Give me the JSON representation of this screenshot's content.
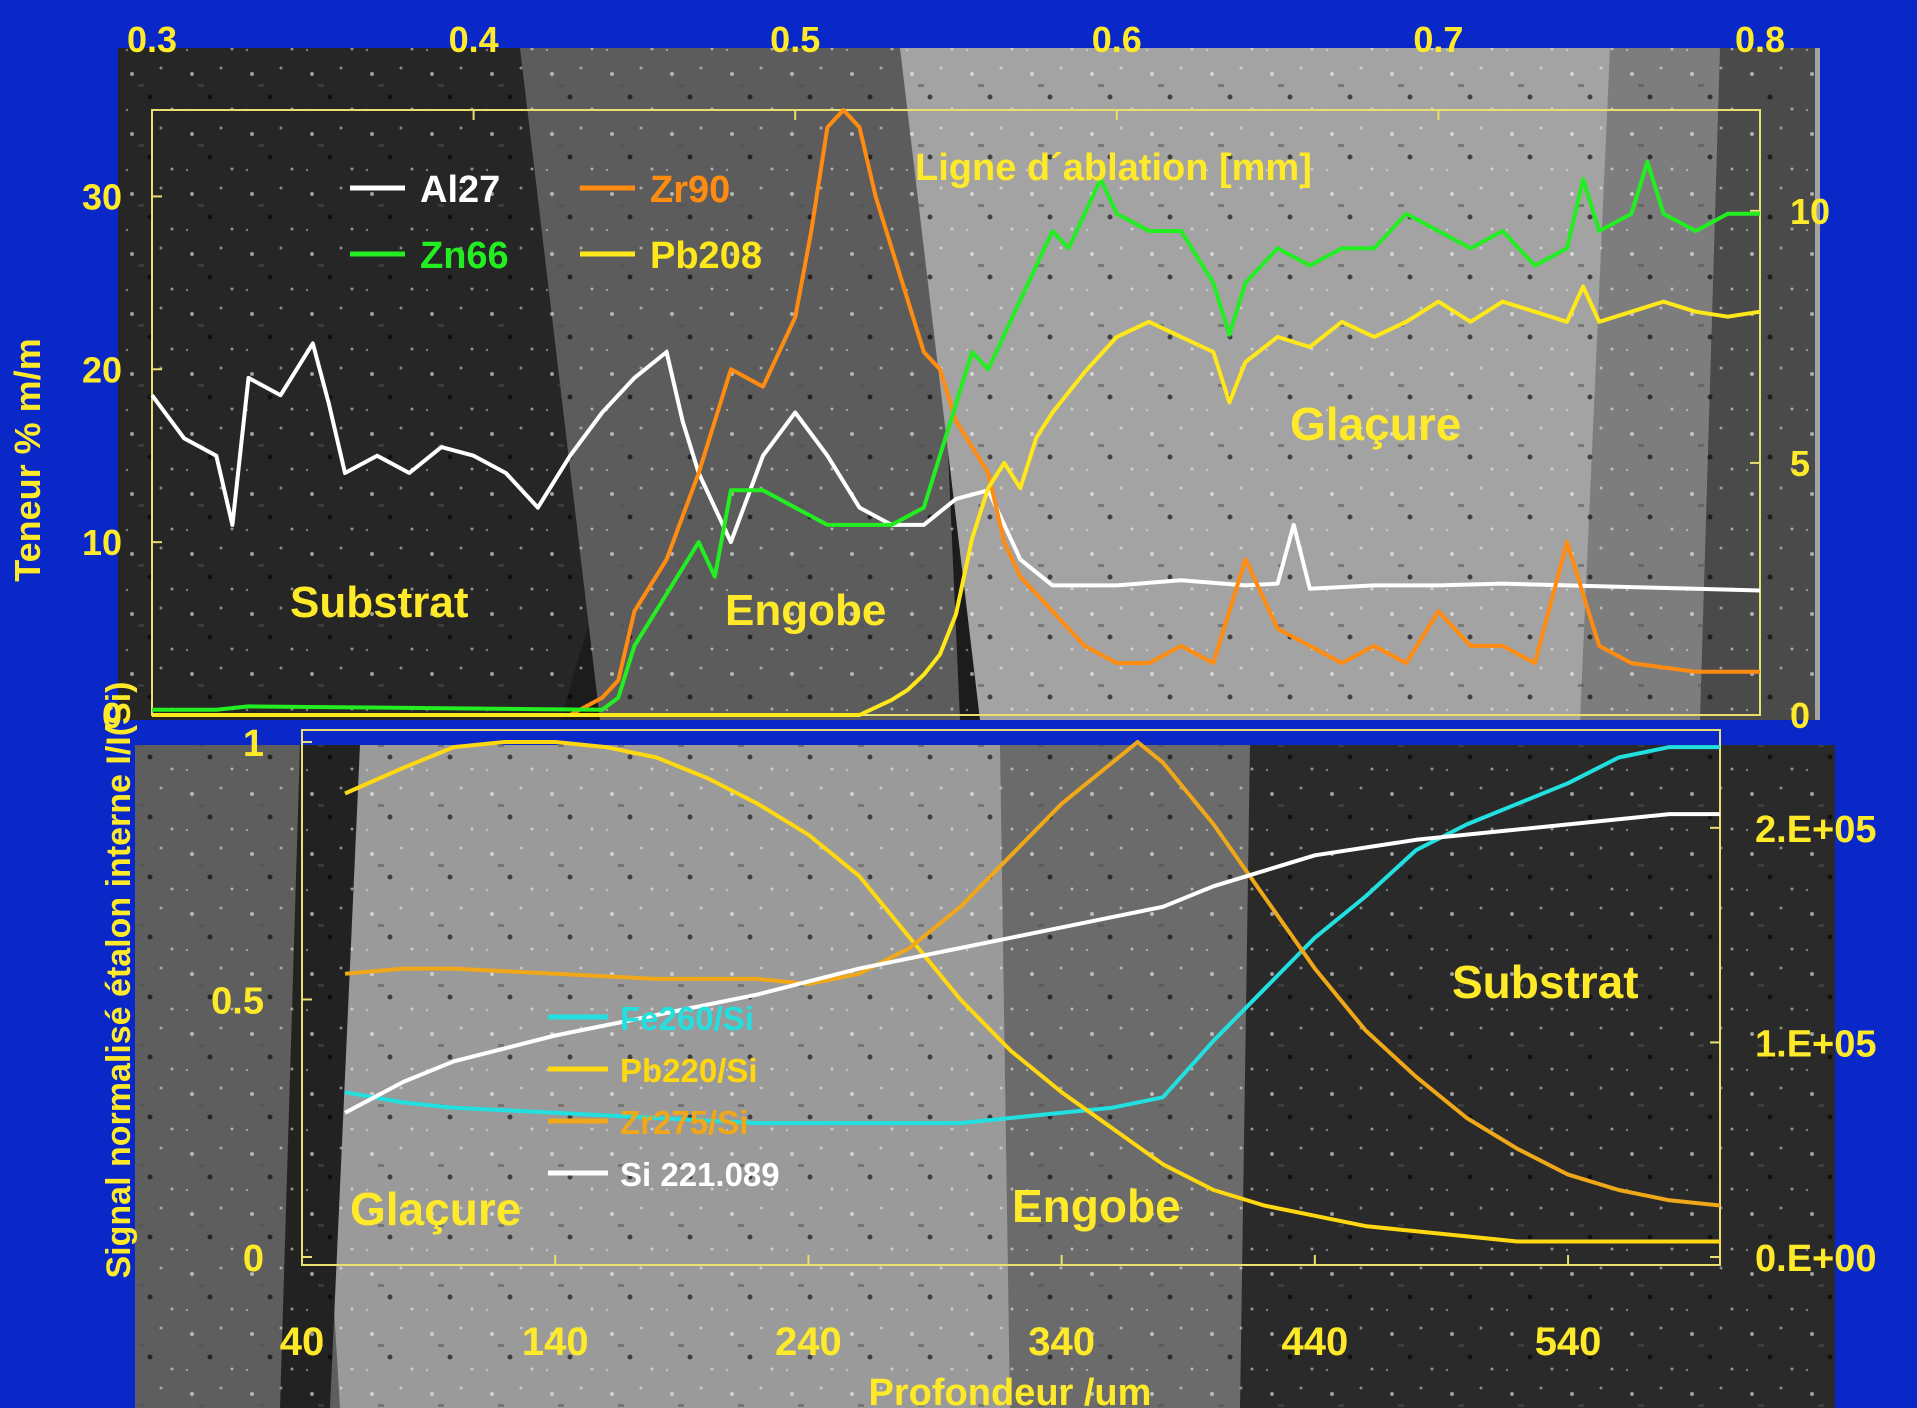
{
  "colors": {
    "background": "#0a28c8",
    "label": "#ffea2a",
    "axis": "#e8e070",
    "Al27": "#ffffff",
    "Zr90": "#ff8c10",
    "Zn66": "#22ee22",
    "Pb208": "#ffe81a",
    "Fe260": "#22e0e0",
    "Pb220": "#ffd810",
    "Zr275": "#f0a818",
    "Si221": "#ffffff"
  },
  "chart_data": [
    {
      "type": "line",
      "title": "",
      "top_axis": {
        "label": "Ligne d´ablation  [mm]",
        "range": [
          0.3,
          0.8
        ],
        "ticks": [
          "0.3",
          "0.4",
          "0.5",
          "0.6",
          "0.7",
          "0.8"
        ]
      },
      "ylabel": "Teneur % m/m",
      "ylim": [
        0,
        35
      ],
      "yticks": [
        "0",
        "10",
        "20",
        "30"
      ],
      "y2lim": [
        0,
        12
      ],
      "y2ticks": [
        "0",
        "5",
        "10"
      ],
      "legend_placement": "top-left",
      "region_labels": [
        "Substrat",
        "Engobe",
        "Glaçure"
      ],
      "series": [
        {
          "name": "Al27",
          "color_key": "Al27",
          "x": [
            0.3,
            0.31,
            0.32,
            0.325,
            0.33,
            0.34,
            0.35,
            0.355,
            0.36,
            0.37,
            0.38,
            0.39,
            0.4,
            0.41,
            0.42,
            0.43,
            0.44,
            0.45,
            0.46,
            0.465,
            0.47,
            0.48,
            0.49,
            0.5,
            0.51,
            0.52,
            0.53,
            0.54,
            0.55,
            0.56,
            0.57,
            0.58,
            0.6,
            0.62,
            0.64,
            0.65,
            0.655,
            0.66,
            0.68,
            0.7,
            0.72,
            0.74,
            0.76,
            0.78,
            0.8
          ],
          "y": [
            18.5,
            16,
            15,
            11,
            19.5,
            18.5,
            21.5,
            18,
            14,
            15,
            14,
            15.5,
            15,
            14,
            12,
            15,
            17.5,
            19.5,
            21,
            17,
            14,
            10,
            15,
            17.5,
            15,
            12,
            11,
            11,
            12.5,
            13,
            9,
            7.5,
            7.5,
            7.8,
            7.5,
            7.6,
            11,
            7.3,
            7.5,
            7.5,
            7.6,
            7.5,
            7.4,
            7.3,
            7.2
          ]
        },
        {
          "name": "Zr90",
          "color_key": "Zr90",
          "x": [
            0.3,
            0.43,
            0.44,
            0.445,
            0.45,
            0.46,
            0.47,
            0.48,
            0.49,
            0.5,
            0.505,
            0.51,
            0.515,
            0.52,
            0.525,
            0.53,
            0.54,
            0.545,
            0.55,
            0.56,
            0.565,
            0.57,
            0.58,
            0.59,
            0.6,
            0.61,
            0.62,
            0.63,
            0.64,
            0.65,
            0.66,
            0.67,
            0.68,
            0.69,
            0.7,
            0.71,
            0.72,
            0.73,
            0.74,
            0.75,
            0.76,
            0.78,
            0.8
          ],
          "y": [
            0,
            0,
            1,
            2,
            6,
            9,
            14,
            20,
            19,
            23,
            28,
            34,
            35,
            34,
            30,
            27,
            21,
            20,
            17,
            14,
            10,
            8,
            6,
            4,
            3,
            3,
            4,
            3,
            9,
            5,
            4,
            3,
            4,
            3,
            6,
            4,
            4,
            3,
            10,
            4,
            3,
            2.5,
            2.5
          ]
        },
        {
          "name": "Zn66",
          "color_key": "Zn66",
          "x": [
            0.3,
            0.32,
            0.33,
            0.44,
            0.445,
            0.45,
            0.46,
            0.47,
            0.475,
            0.48,
            0.49,
            0.5,
            0.51,
            0.52,
            0.53,
            0.54,
            0.55,
            0.555,
            0.56,
            0.57,
            0.58,
            0.585,
            0.59,
            0.595,
            0.6,
            0.61,
            0.62,
            0.63,
            0.635,
            0.64,
            0.65,
            0.66,
            0.67,
            0.68,
            0.69,
            0.7,
            0.71,
            0.72,
            0.73,
            0.74,
            0.745,
            0.75,
            0.76,
            0.765,
            0.77,
            0.78,
            0.79,
            0.8
          ],
          "y": [
            0.3,
            0.3,
            0.5,
            0.3,
            1,
            4,
            7,
            10,
            8,
            13,
            13,
            12,
            11,
            11,
            11,
            12,
            18,
            21,
            20,
            24,
            28,
            27,
            29,
            31,
            29,
            28,
            28,
            25,
            22,
            25,
            27,
            26,
            27,
            27,
            29,
            28,
            27,
            28,
            26,
            27,
            31,
            28,
            29,
            32,
            29,
            28,
            29,
            29
          ]
        },
        {
          "name": "Pb208",
          "color_key": "Pb208",
          "x": [
            0.3,
            0.52,
            0.53,
            0.535,
            0.54,
            0.545,
            0.55,
            0.555,
            0.56,
            0.565,
            0.57,
            0.575,
            0.58,
            0.59,
            0.6,
            0.61,
            0.62,
            0.63,
            0.635,
            0.64,
            0.65,
            0.66,
            0.67,
            0.68,
            0.69,
            0.7,
            0.71,
            0.72,
            0.73,
            0.74,
            0.745,
            0.75,
            0.76,
            0.77,
            0.78,
            0.79,
            0.8
          ],
          "y": [
            0,
            0,
            0.3,
            0.5,
            0.8,
            1.2,
            2,
            3.5,
            4.5,
            5,
            4.5,
            5.5,
            6,
            6.8,
            7.5,
            7.8,
            7.5,
            7.2,
            6.2,
            7,
            7.5,
            7.3,
            7.8,
            7.5,
            7.8,
            8.2,
            7.8,
            8.2,
            8,
            7.8,
            8.5,
            7.8,
            8,
            8.2,
            8,
            7.9,
            8
          ]
        }
      ]
    },
    {
      "type": "line",
      "title": "",
      "xlabel": "Profondeur /um",
      "xlim": [
        40,
        600
      ],
      "xticks": [
        "40",
        "140",
        "240",
        "340",
        "440",
        "540"
      ],
      "ylabel": "Signal normalisé étalon interne I/I(Si)",
      "ylim": [
        0,
        1
      ],
      "yticks": [
        "0",
        "0.5",
        "1"
      ],
      "y2lim": [
        0,
        2.4
      ],
      "y2ticks": [
        "0.E+00",
        "1.E+05",
        "2.E+05"
      ],
      "legend_placement": "center",
      "region_labels": [
        "Glaçure",
        "Engobe",
        "Substrat"
      ],
      "series": [
        {
          "name": "Fe260/Si",
          "color_key": "Fe260",
          "x": [
            57,
            80,
            100,
            140,
            180,
            220,
            260,
            300,
            340,
            360,
            380,
            400,
            420,
            440,
            460,
            480,
            500,
            520,
            540,
            560,
            580,
            600
          ],
          "y": [
            0.32,
            0.3,
            0.29,
            0.28,
            0.27,
            0.26,
            0.26,
            0.26,
            0.28,
            0.29,
            0.31,
            0.42,
            0.52,
            0.62,
            0.7,
            0.79,
            0.84,
            0.88,
            0.92,
            0.97,
            0.99,
            0.99
          ]
        },
        {
          "name": "Pb220/Si",
          "color_key": "Pb220",
          "x": [
            57,
            80,
            100,
            120,
            140,
            160,
            180,
            200,
            220,
            240,
            260,
            280,
            300,
            320,
            340,
            360,
            380,
            400,
            420,
            440,
            460,
            480,
            500,
            520,
            540,
            560,
            580,
            600
          ],
          "y": [
            0.9,
            0.95,
            0.99,
            1.0,
            1.0,
            0.99,
            0.97,
            0.93,
            0.88,
            0.82,
            0.74,
            0.62,
            0.5,
            0.4,
            0.32,
            0.25,
            0.18,
            0.13,
            0.1,
            0.08,
            0.06,
            0.05,
            0.04,
            0.03,
            0.03,
            0.03,
            0.03,
            0.03
          ]
        },
        {
          "name": "Zr275/Si",
          "color_key": "Zr275",
          "x": [
            57,
            80,
            100,
            140,
            180,
            220,
            240,
            260,
            280,
            300,
            320,
            340,
            360,
            370,
            380,
            400,
            420,
            440,
            460,
            480,
            500,
            520,
            540,
            560,
            580,
            600
          ],
          "y": [
            0.55,
            0.56,
            0.56,
            0.55,
            0.54,
            0.54,
            0.53,
            0.55,
            0.6,
            0.68,
            0.78,
            0.88,
            0.96,
            1.0,
            0.96,
            0.84,
            0.7,
            0.56,
            0.44,
            0.35,
            0.27,
            0.21,
            0.16,
            0.13,
            0.11,
            0.1
          ]
        },
        {
          "name": "Si 221.089",
          "color_key": "Si221",
          "x": [
            57,
            80,
            100,
            140,
            180,
            220,
            260,
            300,
            340,
            360,
            380,
            400,
            420,
            440,
            480,
            520,
            560,
            580,
            600
          ],
          "y": [
            0.28,
            0.34,
            0.38,
            0.43,
            0.47,
            0.51,
            0.56,
            0.6,
            0.64,
            0.66,
            0.68,
            0.72,
            0.75,
            0.78,
            0.81,
            0.83,
            0.85,
            0.86,
            0.86
          ]
        }
      ]
    }
  ]
}
